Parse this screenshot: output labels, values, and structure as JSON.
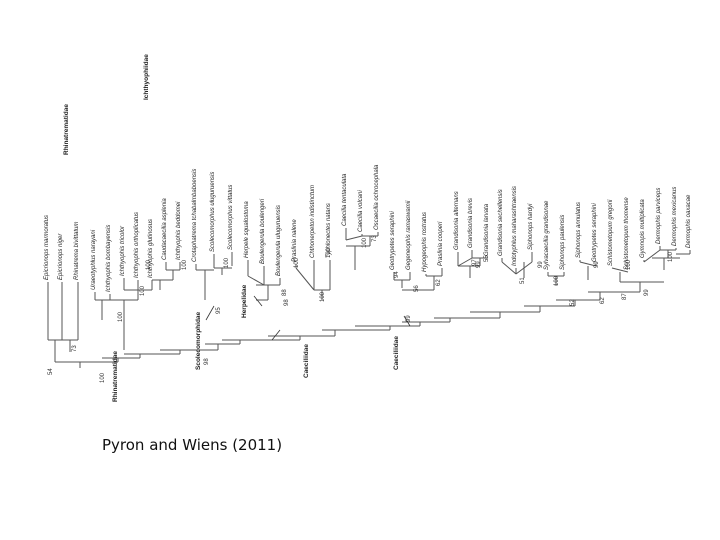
{
  "caption": "Pyron and Wiens (2011)",
  "taxa": [
    "Epicrionops marmoratus",
    "Epicrionops niger",
    "Rhinatrema bivittatum",
    "Uraeotyphlus narayani",
    "Ichthyophis bombayensis",
    "Ichthyophis tricolor",
    "Ichthyophis orthoplicatus",
    "Ichthyophis glutinosus",
    "Caudacaecilia asplenia",
    "Ichthyophis beddomei",
    "Crotaphatrema tchabalmbaboensis",
    "Scolecomorphus uluguruensis",
    "Scolecomorphus vittatus",
    "Herpele squalostoma",
    "Boulengerula boulengeri",
    "Boulengerula uluguruensis",
    "Praslinia nalene",
    "Chthonerpeton indistinctum",
    "Typhlonectes natans",
    "Caecilia tentaculata",
    "Caecilia volcani",
    "Oscaecilia ochrocephala",
    "Geotrypetes seraphini",
    "Gegeneophis ramaswamii",
    "Hypogeophis rostratus",
    "Praslinia cooperi",
    "Grandisonia alternans",
    "Grandisonia brevis",
    "Grandisonia larvata",
    "Grandisonia sechellensis",
    "Indotyphlus maharashtraensis",
    "Siphonops hardyi",
    "Sylvacaecilia grandisonae",
    "Siphonops paulensis",
    "Siphonops annulatus",
    "Geotrypetes seraphini",
    "Schistometopum gregorii",
    "Schistometopum thomense",
    "Gymnopis multiplicata",
    "Dermophis parviceps",
    "Dermophis mexicanus",
    "Dermophis oaxacae"
  ],
  "families": [
    "Rhinatrematidae",
    "Ichthyophiidae",
    "Scolecomorphidae",
    "Herpelidae",
    "Caeciliidae",
    "Caeciliidae",
    "Rhinatrematidae"
  ],
  "support": [
    "54",
    "73",
    "100",
    "100",
    "100",
    "100",
    "100",
    "98",
    "95",
    "100",
    "98",
    "88",
    "100",
    "100",
    "100",
    "100",
    "73",
    "99",
    "94",
    "62",
    "56",
    "99",
    "97",
    "55",
    "51",
    "99",
    "100",
    "62",
    "99",
    "52",
    "87",
    "99",
    "100",
    "100"
  ]
}
